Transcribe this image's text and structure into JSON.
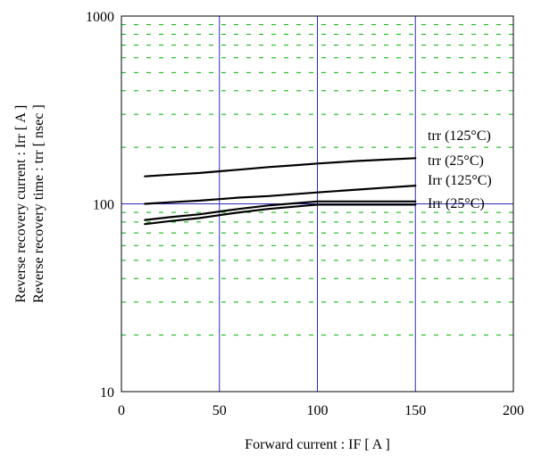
{
  "chart_data": {
    "type": "line",
    "title": "",
    "xlabel": "Forward current : IF [ A ]",
    "ylabel": [
      "Reverse recovery current : Irr [ A ]",
      "Reverse recovery time : trr [ nsec ]"
    ],
    "xlim": [
      0,
      200
    ],
    "ylim": [
      10,
      1000
    ],
    "yscale": "log",
    "x_ticks": [
      0,
      50,
      100,
      150,
      200
    ],
    "x_tick_labels": [
      "0",
      "50",
      "100",
      "150",
      "200"
    ],
    "y_ticks": [
      10,
      100,
      1000
    ],
    "y_tick_labels": [
      "10",
      "100",
      "1000"
    ],
    "grid": {
      "major": true,
      "major_color": "#2b2bb5",
      "minor": true,
      "minor_color": "#00b000",
      "minor_style": "dashed"
    },
    "legend": "labels at right end of curves",
    "series": [
      {
        "name": "trr (125°C)",
        "x": [
          12,
          25,
          40,
          50,
          60,
          75,
          90,
          100,
          120,
          135,
          150
        ],
        "y": [
          140,
          143,
          146,
          149,
          152,
          157,
          161,
          164,
          169,
          172,
          175
        ]
      },
      {
        "name": "trr (25°C)",
        "x": [
          12,
          25,
          40,
          50,
          60,
          75,
          90,
          100,
          120,
          135,
          150
        ],
        "y": [
          100,
          102,
          104,
          106,
          108,
          110,
          113,
          115,
          119,
          122,
          125
        ]
      },
      {
        "name": "Irr (125°C)",
        "x": [
          12,
          25,
          40,
          50,
          60,
          75,
          90,
          100,
          120,
          135,
          150
        ],
        "y": [
          82,
          85,
          88,
          91,
          94,
          98,
          101,
          103,
          103,
          103,
          103
        ]
      },
      {
        "name": "Irr (25°C)",
        "x": [
          12,
          25,
          40,
          50,
          60,
          75,
          90,
          100,
          120,
          135,
          150
        ],
        "y": [
          78,
          81,
          84,
          87,
          90,
          94,
          97,
          99,
          99,
          99,
          99
        ]
      }
    ]
  }
}
